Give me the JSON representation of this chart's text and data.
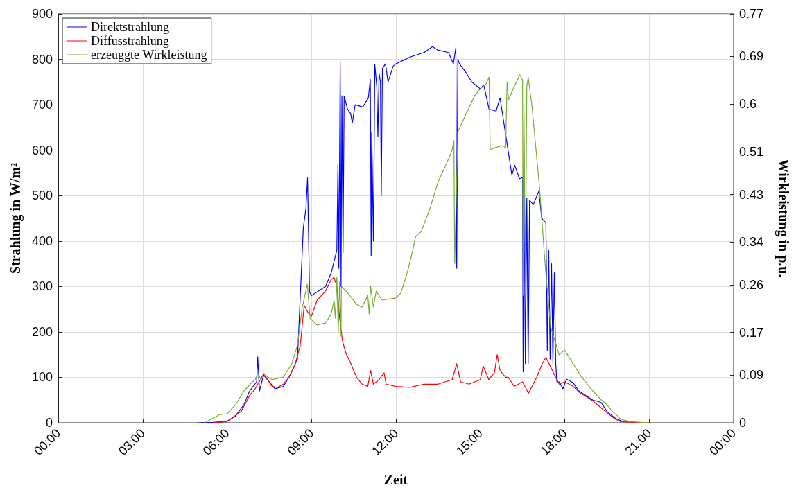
{
  "chart_data": {
    "type": "line",
    "xlabel": "Zeit",
    "ylabel": "Strahlung in W/m²",
    "y2label": "Wirkleistung in p.u.",
    "xlim": [
      0,
      24
    ],
    "xticks": [
      {
        "value": 0,
        "label": "00:00"
      },
      {
        "value": 3,
        "label": "03:00"
      },
      {
        "value": 6,
        "label": "06:00"
      },
      {
        "value": 9,
        "label": "09:00"
      },
      {
        "value": 12,
        "label": "12:00"
      },
      {
        "value": 15,
        "label": "15:00"
      },
      {
        "value": 18,
        "label": "18:00"
      },
      {
        "value": 21,
        "label": "21:00"
      },
      {
        "value": 24,
        "label": "00:00"
      }
    ],
    "ylim": [
      0,
      900
    ],
    "yticks": [
      0,
      100,
      200,
      300,
      400,
      500,
      600,
      700,
      800,
      900
    ],
    "y2lim": [
      0,
      0.77
    ],
    "y2ticks": [
      0,
      0.09,
      0.17,
      0.26,
      0.34,
      0.43,
      0.51,
      0.6,
      0.69,
      0.77
    ],
    "grid": true,
    "legend": "top left",
    "marker": "none",
    "line_style": "solid",
    "series": [
      {
        "name": "Direktstrahlung",
        "color": "#0000ff",
        "x": [
          5,
          5.5,
          6,
          6.3,
          6.6,
          6.8,
          7.05,
          7.09,
          7.15,
          7.3,
          7.5,
          7.7,
          8,
          8.2,
          8.5,
          8.71,
          8.8,
          8.86,
          8.93,
          9,
          9.5,
          9.7,
          9.9,
          9.94,
          9.97,
          10.02,
          10.05,
          10.08,
          10.12,
          10.16,
          10.28,
          10.39,
          10.45,
          10.55,
          10.82,
          11.02,
          11.09,
          11.12,
          11.14,
          11.2,
          11.25,
          11.32,
          11.36,
          11.4,
          11.45,
          11.48,
          11.52,
          11.63,
          11.72,
          11.9,
          12,
          12.5,
          13,
          13.3,
          13.5,
          13.87,
          14.04,
          14.13,
          14.16,
          14.2,
          14.26,
          14.5,
          14.7,
          15,
          15.12,
          15.31,
          15.56,
          15.7,
          15.96,
          16.12,
          16.22,
          16.39,
          16.5,
          16.52,
          16.55,
          16.6,
          16.65,
          16.7,
          16.75,
          16.88,
          17.08,
          17.18,
          17.33,
          17.38,
          17.43,
          17.48,
          17.53,
          17.58,
          17.63,
          17.68,
          17.72,
          17.8,
          17.94,
          18.06,
          18.3,
          18.5,
          19,
          19.29,
          19.5,
          19.8,
          20.02,
          20.5
        ],
        "values": [
          0,
          1,
          3,
          15,
          40,
          70,
          90,
          145,
          70,
          105,
          90,
          75,
          80,
          100,
          140,
          430,
          470,
          539,
          288,
          280,
          300,
          330,
          380,
          570,
          340,
          794,
          300,
          720,
          374,
          719,
          690,
          681,
          660,
          700,
          695,
          715,
          756,
          367,
          640,
          400,
          788,
          740,
          630,
          770,
          750,
          500,
          780,
          790,
          750,
          785,
          790,
          805,
          815,
          828,
          820,
          815,
          790,
          826,
          340,
          800,
          790,
          770,
          750,
          735,
          744,
          690,
          686,
          715,
          610,
          545,
          567,
          537,
          540,
          112,
          540,
          130,
          495,
          130,
          490,
          480,
          510,
          450,
          440,
          159,
          380,
          140,
          350,
          130,
          330,
          130,
          90,
          90,
          75,
          96,
          88,
          70,
          50,
          45,
          25,
          10,
          4,
          1
        ]
      },
      {
        "name": "Diffusstrahlung",
        "color": "#ff0000",
        "x": [
          5.5,
          6,
          6.5,
          6.8,
          7,
          7.3,
          7.6,
          7.8,
          8,
          8.2,
          8.4,
          8.6,
          8.74,
          8.9,
          9,
          9.2,
          9.5,
          9.7,
          9.8,
          9.9,
          10,
          10.1,
          10.23,
          10.4,
          10.6,
          10.8,
          11,
          11.1,
          11.2,
          11.4,
          11.58,
          11.65,
          12,
          12.5,
          13,
          13.5,
          14,
          14.16,
          14.3,
          14.6,
          15,
          15.1,
          15.3,
          15.5,
          15.6,
          15.7,
          15.9,
          16,
          16.2,
          16.5,
          16.71,
          17,
          17.2,
          17.33,
          17.6,
          17.8,
          18,
          18.3,
          18.5,
          19,
          19.5,
          19.8,
          20,
          21
        ],
        "values": [
          0,
          3,
          25,
          60,
          75,
          108,
          80,
          78,
          85,
          100,
          125,
          170,
          258,
          240,
          235,
          270,
          290,
          315,
          320,
          300,
          230,
          180,
          152,
          130,
          100,
          85,
          80,
          115,
          85,
          95,
          110,
          85,
          80,
          78,
          85,
          85,
          95,
          130,
          90,
          85,
          95,
          125,
          95,
          110,
          150,
          115,
          100,
          100,
          80,
          90,
          65,
          100,
          130,
          144,
          110,
          85,
          90,
          80,
          68,
          48,
          22,
          8,
          2,
          0
        ]
      },
      {
        "name": "erzeuggte Wirkleistung",
        "color": "#77ac30",
        "axis": "y2",
        "x": [
          5.2,
          5.72,
          6,
          6.3,
          6.6,
          6.9,
          7,
          7.09,
          7.2,
          7.34,
          7.6,
          8,
          8.3,
          8.5,
          8.66,
          8.85,
          8.95,
          9.2,
          9.5,
          9.7,
          9.8,
          9.85,
          9.9,
          9.95,
          10,
          10.05,
          10.06,
          10.3,
          10.6,
          10.8,
          11,
          11.05,
          11.1,
          11.2,
          11.3,
          11.5,
          12,
          12.17,
          12.4,
          12.6,
          12.7,
          12.9,
          13.2,
          13.5,
          13.8,
          14,
          14.06,
          14.09,
          14.2,
          14.5,
          14.8,
          15,
          15.2,
          15.31,
          15.35,
          15.5,
          15.8,
          15.9,
          15.95,
          16,
          16.2,
          16.4,
          16.5,
          16.52,
          16.55,
          16.6,
          16.65,
          16.7,
          16.83,
          17.1,
          17.3,
          17.4,
          17.5,
          17.6,
          17.7,
          17.8,
          18,
          18.1,
          18.3,
          18.6,
          19,
          19.3,
          19.5,
          19.7,
          20,
          20.3,
          21
        ],
        "values": [
          0,
          0.015,
          0.017,
          0.034,
          0.06,
          0.077,
          0.081,
          0.094,
          0.081,
          0.09,
          0.081,
          0.086,
          0.111,
          0.146,
          0.214,
          0.261,
          0.197,
          0.184,
          0.188,
          0.205,
          0.231,
          0.197,
          0.274,
          0.171,
          0.265,
          0.163,
          0.257,
          0.244,
          0.223,
          0.218,
          0.24,
          0.205,
          0.257,
          0.218,
          0.248,
          0.231,
          0.235,
          0.244,
          0.282,
          0.325,
          0.351,
          0.36,
          0.402,
          0.454,
          0.488,
          0.514,
          0.531,
          0.3,
          0.548,
          0.582,
          0.616,
          0.629,
          0.638,
          0.651,
          0.514,
          0.518,
          0.522,
          0.518,
          0.642,
          0.608,
          0.633,
          0.655,
          0.646,
          0.24,
          0.599,
          0.257,
          0.633,
          0.651,
          0.599,
          0.445,
          0.3,
          0.24,
          0.18,
          0.163,
          0.146,
          0.128,
          0.137,
          0.128,
          0.111,
          0.086,
          0.06,
          0.043,
          0.034,
          0.021,
          0.007,
          0.002,
          0
        ]
      }
    ]
  }
}
